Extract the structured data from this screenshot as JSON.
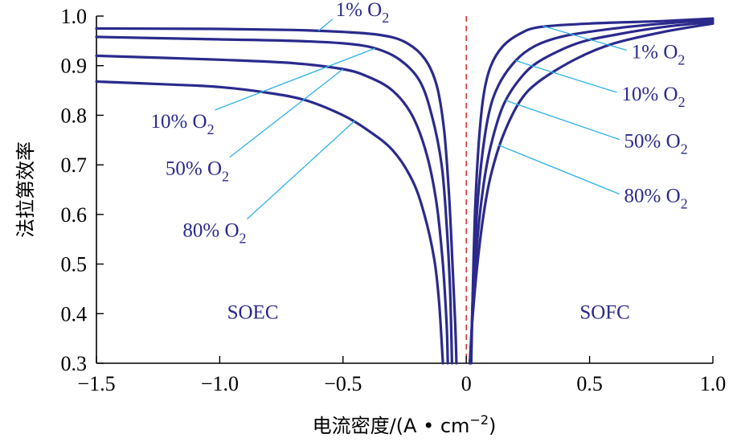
{
  "chart_data": {
    "type": "line",
    "xlabel_main": "电流密度/(A • cm",
    "xlabel_sup": "−2",
    "xlabel_tail": ")",
    "ylabel": "法拉第效率",
    "xlim": [
      -1.5,
      1.0
    ],
    "ylim": [
      0.3,
      1.0
    ],
    "x_ticks": [
      -1.5,
      -1.0,
      -0.5,
      0,
      0.5,
      1.0
    ],
    "x_tick_labels": [
      "−1.5",
      "−1.0",
      "−0.5",
      "0",
      "0.5",
      "1.0"
    ],
    "y_ticks": [
      0.3,
      0.4,
      0.5,
      0.6,
      0.7,
      0.8,
      0.9,
      1.0
    ],
    "y_tick_labels": [
      "0.3",
      "0.4",
      "0.5",
      "0.6",
      "0.7",
      "0.8",
      "0.9",
      "1.0"
    ],
    "reference_line_x": 0,
    "regions": [
      {
        "text": "SOEC",
        "x": -0.97,
        "y": 0.39
      },
      {
        "text": "SOFC",
        "x": 0.46,
        "y": 0.39
      }
    ],
    "series": [
      {
        "name": "1% O2",
        "color": "#2b2a8c",
        "soec": [
          [
            -1.5,
            0.975
          ],
          [
            -1.0,
            0.974
          ],
          [
            -0.7,
            0.972
          ],
          [
            -0.5,
            0.968
          ],
          [
            -0.35,
            0.962
          ],
          [
            -0.25,
            0.948
          ],
          [
            -0.17,
            0.915
          ],
          [
            -0.12,
            0.86
          ],
          [
            -0.09,
            0.77
          ],
          [
            -0.07,
            0.64
          ],
          [
            -0.055,
            0.49
          ],
          [
            -0.045,
            0.38
          ],
          [
            -0.04,
            0.3
          ]
        ],
        "sofc": [
          [
            0.02,
            0.3
          ],
          [
            0.025,
            0.42
          ],
          [
            0.035,
            0.6
          ],
          [
            0.05,
            0.74
          ],
          [
            0.07,
            0.84
          ],
          [
            0.1,
            0.9
          ],
          [
            0.15,
            0.94
          ],
          [
            0.22,
            0.965
          ],
          [
            0.3,
            0.978
          ],
          [
            0.5,
            0.985
          ],
          [
            0.8,
            0.99
          ],
          [
            1.0,
            0.995
          ]
        ]
      },
      {
        "name": "10% O2",
        "color": "#2b2a8c",
        "soec": [
          [
            -1.5,
            0.958
          ],
          [
            -1.0,
            0.953
          ],
          [
            -0.7,
            0.95
          ],
          [
            -0.5,
            0.945
          ],
          [
            -0.37,
            0.935
          ],
          [
            -0.27,
            0.912
          ],
          [
            -0.19,
            0.87
          ],
          [
            -0.14,
            0.8
          ],
          [
            -0.1,
            0.7
          ],
          [
            -0.08,
            0.58
          ],
          [
            -0.066,
            0.45
          ],
          [
            -0.058,
            0.3
          ]
        ],
        "sofc": [
          [
            0.018,
            0.3
          ],
          [
            0.026,
            0.43
          ],
          [
            0.04,
            0.58
          ],
          [
            0.06,
            0.7
          ],
          [
            0.09,
            0.8
          ],
          [
            0.13,
            0.86
          ],
          [
            0.2,
            0.91
          ],
          [
            0.28,
            0.94
          ],
          [
            0.4,
            0.96
          ],
          [
            0.6,
            0.975
          ],
          [
            0.8,
            0.985
          ],
          [
            1.0,
            0.992
          ]
        ]
      },
      {
        "name": "50% O2",
        "color": "#2b2a8c",
        "soec": [
          [
            -1.5,
            0.92
          ],
          [
            -1.0,
            0.912
          ],
          [
            -0.7,
            0.905
          ],
          [
            -0.5,
            0.893
          ],
          [
            -0.4,
            0.878
          ],
          [
            -0.3,
            0.85
          ],
          [
            -0.22,
            0.8
          ],
          [
            -0.16,
            0.72
          ],
          [
            -0.12,
            0.62
          ],
          [
            -0.095,
            0.5
          ],
          [
            -0.08,
            0.38
          ],
          [
            -0.075,
            0.3
          ]
        ],
        "sofc": [
          [
            0.016,
            0.3
          ],
          [
            0.026,
            0.41
          ],
          [
            0.045,
            0.55
          ],
          [
            0.07,
            0.66
          ],
          [
            0.1,
            0.74
          ],
          [
            0.15,
            0.82
          ],
          [
            0.22,
            0.875
          ],
          [
            0.3,
            0.91
          ],
          [
            0.45,
            0.945
          ],
          [
            0.6,
            0.962
          ],
          [
            0.8,
            0.978
          ],
          [
            1.0,
            0.988
          ]
        ]
      },
      {
        "name": "80% O2",
        "color": "#2b2a8c",
        "soec": [
          [
            -1.5,
            0.868
          ],
          [
            -1.2,
            0.862
          ],
          [
            -1.0,
            0.857
          ],
          [
            -0.8,
            0.845
          ],
          [
            -0.65,
            0.83
          ],
          [
            -0.5,
            0.8
          ],
          [
            -0.4,
            0.77
          ],
          [
            -0.3,
            0.73
          ],
          [
            -0.22,
            0.67
          ],
          [
            -0.17,
            0.6
          ],
          [
            -0.13,
            0.51
          ],
          [
            -0.11,
            0.42
          ],
          [
            -0.095,
            0.3
          ]
        ],
        "sofc": [
          [
            0.014,
            0.3
          ],
          [
            0.025,
            0.39
          ],
          [
            0.045,
            0.5
          ],
          [
            0.07,
            0.6
          ],
          [
            0.1,
            0.68
          ],
          [
            0.15,
            0.76
          ],
          [
            0.22,
            0.83
          ],
          [
            0.3,
            0.87
          ],
          [
            0.45,
            0.915
          ],
          [
            0.6,
            0.945
          ],
          [
            0.8,
            0.968
          ],
          [
            1.0,
            0.985
          ]
        ]
      }
    ],
    "annotations": [
      {
        "side": "soec",
        "series": 0,
        "text": "1%",
        "sub": "2",
        "point": [
          -0.6,
          0.97
        ],
        "label_at": [
          -0.53,
          1.0
        ],
        "anchor": "start"
      },
      {
        "side": "soec",
        "series": 1,
        "text": "10%",
        "sub": "2",
        "point": [
          -0.37,
          0.935
        ],
        "label_at": [
          -1.28,
          0.775
        ],
        "anchor": "start"
      },
      {
        "side": "soec",
        "series": 2,
        "text": "50%",
        "sub": "2",
        "point": [
          -0.5,
          0.893
        ],
        "label_at": [
          -1.22,
          0.68
        ],
        "anchor": "start"
      },
      {
        "side": "soec",
        "series": 3,
        "text": "80%",
        "sub": "2",
        "point": [
          -0.45,
          0.79
        ],
        "label_at": [
          -1.15,
          0.555
        ],
        "anchor": "start"
      },
      {
        "side": "sofc",
        "series": 0,
        "text": "1%",
        "sub": "2",
        "point": [
          0.31,
          0.98
        ],
        "label_at": [
          0.67,
          0.915
        ],
        "anchor": "start"
      },
      {
        "side": "sofc",
        "series": 1,
        "text": "10%",
        "sub": "2",
        "point": [
          0.2,
          0.91
        ],
        "label_at": [
          0.63,
          0.83
        ],
        "anchor": "start"
      },
      {
        "side": "sofc",
        "series": 2,
        "text": "50%",
        "sub": "2",
        "point": [
          0.16,
          0.83
        ],
        "label_at": [
          0.64,
          0.735
        ],
        "anchor": "start"
      },
      {
        "side": "sofc",
        "series": 3,
        "text": "80%",
        "sub": "2",
        "point": [
          0.13,
          0.74
        ],
        "label_at": [
          0.64,
          0.625
        ],
        "anchor": "start"
      }
    ],
    "label_text": {
      "o": "O"
    }
  }
}
